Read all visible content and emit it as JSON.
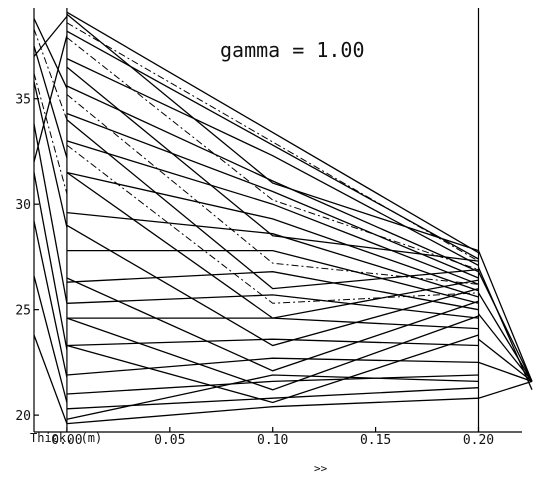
{
  "chart_data": {
    "type": "line",
    "annotation": "gamma = 1.00",
    "xlabel": "Thick. (m)",
    "xlim": [
      -0.016,
      0.226
    ],
    "ylim": [
      19.2,
      39.3
    ],
    "xticks": [
      {
        "value": 0.0,
        "label": "0.00"
      },
      {
        "value": 0.05,
        "label": "0.05"
      },
      {
        "value": 0.1,
        "label": "0.10"
      },
      {
        "value": 0.15,
        "label": "0.15"
      },
      {
        "value": 0.2,
        "label": "0.20"
      }
    ],
    "yticks": [
      {
        "value": 20,
        "label": "20"
      },
      {
        "value": 25,
        "label": "25"
      },
      {
        "value": 30,
        "label": "30"
      },
      {
        "value": 35,
        "label": "35"
      }
    ],
    "boundaries_x": [
      0.0,
      0.2
    ],
    "series": [
      {
        "dashed": false,
        "x": [
          0.0,
          0.2
        ],
        "y": [
          39.1,
          27.7
        ]
      },
      {
        "dashed": false,
        "x": [
          0.0,
          0.2
        ],
        "y": [
          38.2,
          27.4
        ]
      },
      {
        "dashed": false,
        "x": [
          0.0,
          0.1,
          0.2
        ],
        "y": [
          36.9,
          32.3,
          27.1
        ]
      },
      {
        "dashed": false,
        "x": [
          0.0,
          0.1,
          0.2
        ],
        "y": [
          35.6,
          31.1,
          26.8
        ]
      },
      {
        "dashed": false,
        "x": [
          0.0,
          0.1,
          0.2
        ],
        "y": [
          34.3,
          30.6,
          26.5
        ]
      },
      {
        "dashed": false,
        "x": [
          0.0,
          0.1,
          0.2
        ],
        "y": [
          33.0,
          30.0,
          26.2
        ]
      },
      {
        "dashed": false,
        "x": [
          0.0,
          0.1,
          0.2
        ],
        "y": [
          31.5,
          29.3,
          25.9
        ]
      },
      {
        "dashed": false,
        "x": [
          0.0,
          0.1,
          0.2
        ],
        "y": [
          29.6,
          28.6,
          25.6
        ]
      },
      {
        "dashed": false,
        "x": [
          0.0,
          0.1,
          0.2
        ],
        "y": [
          27.8,
          27.8,
          25.3
        ]
      },
      {
        "dashed": false,
        "x": [
          0.0,
          0.1,
          0.2
        ],
        "y": [
          26.3,
          26.8,
          25.0
        ]
      },
      {
        "dashed": false,
        "x": [
          0.0,
          0.1,
          0.2
        ],
        "y": [
          25.3,
          25.7,
          24.6
        ]
      },
      {
        "dashed": false,
        "x": [
          0.0,
          0.1,
          0.2
        ],
        "y": [
          24.6,
          24.6,
          24.1
        ]
      },
      {
        "dashed": false,
        "x": [
          0.0,
          0.1,
          0.2
        ],
        "y": [
          23.3,
          23.6,
          23.3
        ]
      },
      {
        "dashed": false,
        "x": [
          0.0,
          0.1,
          0.2
        ],
        "y": [
          21.9,
          22.7,
          22.5
        ]
      },
      {
        "dashed": false,
        "x": [
          0.0,
          0.1,
          0.2
        ],
        "y": [
          21.0,
          21.6,
          21.9
        ]
      },
      {
        "dashed": false,
        "x": [
          0.0,
          0.1,
          0.2
        ],
        "y": [
          20.3,
          20.8,
          21.3
        ]
      },
      {
        "dashed": false,
        "x": [
          0.0,
          0.1,
          0.2
        ],
        "y": [
          19.6,
          20.4,
          20.8
        ]
      },
      {
        "dashed": false,
        "x": [
          0.0,
          0.1,
          0.2
        ],
        "y": [
          39.0,
          31.0,
          27.8
        ]
      },
      {
        "dashed": false,
        "x": [
          0.0,
          0.1,
          0.2
        ],
        "y": [
          36.5,
          28.5,
          27.3
        ]
      },
      {
        "dashed": false,
        "x": [
          0.0,
          0.1,
          0.2
        ],
        "y": [
          34.0,
          26.0,
          26.9
        ]
      },
      {
        "dashed": false,
        "x": [
          0.0,
          0.1,
          0.2
        ],
        "y": [
          31.5,
          24.6,
          26.4
        ]
      },
      {
        "dashed": false,
        "x": [
          0.0,
          0.1,
          0.2
        ],
        "y": [
          29.0,
          23.3,
          26.0
        ]
      },
      {
        "dashed": false,
        "x": [
          0.0,
          0.1,
          0.2
        ],
        "y": [
          26.5,
          22.1,
          25.4
        ]
      },
      {
        "dashed": false,
        "x": [
          0.0,
          0.1,
          0.2
        ],
        "y": [
          24.6,
          21.2,
          24.7
        ]
      },
      {
        "dashed": false,
        "x": [
          0.0,
          0.1,
          0.2
        ],
        "y": [
          23.3,
          20.6,
          23.8
        ]
      },
      {
        "dashed": false,
        "x": [
          0.0,
          0.1,
          0.2
        ],
        "y": [
          19.8,
          21.9,
          21.6
        ]
      },
      {
        "dashed": false,
        "x": [
          -0.016,
          0.0
        ],
        "y": [
          38.8,
          35.5
        ]
      },
      {
        "dashed": false,
        "x": [
          -0.016,
          0.0
        ],
        "y": [
          37.5,
          32.2
        ]
      },
      {
        "dashed": false,
        "x": [
          -0.016,
          0.0
        ],
        "y": [
          35.8,
          28.9
        ]
      },
      {
        "dashed": false,
        "x": [
          -0.016,
          0.0
        ],
        "y": [
          33.8,
          25.3
        ]
      },
      {
        "dashed": false,
        "x": [
          -0.016,
          0.0
        ],
        "y": [
          31.5,
          23.1
        ]
      },
      {
        "dashed": false,
        "x": [
          -0.016,
          0.0
        ],
        "y": [
          29.2,
          21.8
        ]
      },
      {
        "dashed": false,
        "x": [
          -0.016,
          0.0
        ],
        "y": [
          26.6,
          20.6
        ]
      },
      {
        "dashed": false,
        "x": [
          -0.016,
          0.0
        ],
        "y": [
          23.8,
          19.6
        ]
      },
      {
        "dashed": false,
        "x": [
          -0.016,
          0.0
        ],
        "y": [
          32.0,
          38.0
        ]
      },
      {
        "dashed": false,
        "x": [
          -0.016,
          0.0
        ],
        "y": [
          37.0,
          38.9
        ]
      },
      {
        "dashed": false,
        "x": [
          0.2,
          0.226
        ],
        "y": [
          27.8,
          21.6
        ]
      },
      {
        "dashed": false,
        "x": [
          0.2,
          0.226
        ],
        "y": [
          26.8,
          21.6
        ]
      },
      {
        "dashed": false,
        "x": [
          0.2,
          0.226
        ],
        "y": [
          25.8,
          21.6
        ]
      },
      {
        "dashed": false,
        "x": [
          0.2,
          0.226
        ],
        "y": [
          24.8,
          21.6
        ]
      },
      {
        "dashed": false,
        "x": [
          0.2,
          0.226
        ],
        "y": [
          23.6,
          21.6
        ]
      },
      {
        "dashed": false,
        "x": [
          0.2,
          0.226
        ],
        "y": [
          22.5,
          21.6
        ]
      },
      {
        "dashed": false,
        "x": [
          0.2,
          0.226
        ],
        "y": [
          20.8,
          21.6
        ]
      },
      {
        "dashed": false,
        "x": [
          0.2,
          0.226
        ],
        "y": [
          27.0,
          21.2
        ]
      },
      {
        "dashed": true,
        "x": [
          0.0,
          0.2
        ],
        "y": [
          38.6,
          27.3
        ]
      },
      {
        "dashed": true,
        "x": [
          0.0,
          0.1,
          0.2
        ],
        "y": [
          37.9,
          30.2,
          26.9
        ]
      },
      {
        "dashed": true,
        "x": [
          0.0,
          0.1,
          0.2
        ],
        "y": [
          35.2,
          27.2,
          26.2
        ]
      },
      {
        "dashed": true,
        "x": [
          0.0,
          0.1,
          0.2
        ],
        "y": [
          32.8,
          25.3,
          25.8
        ]
      },
      {
        "dashed": true,
        "x": [
          -0.016,
          0.0
        ],
        "y": [
          38.3,
          34.0
        ]
      },
      {
        "dashed": true,
        "x": [
          -0.016,
          0.0
        ],
        "y": [
          36.2,
          30.5
        ]
      }
    ]
  },
  "footer": {
    "hint": ">>"
  }
}
